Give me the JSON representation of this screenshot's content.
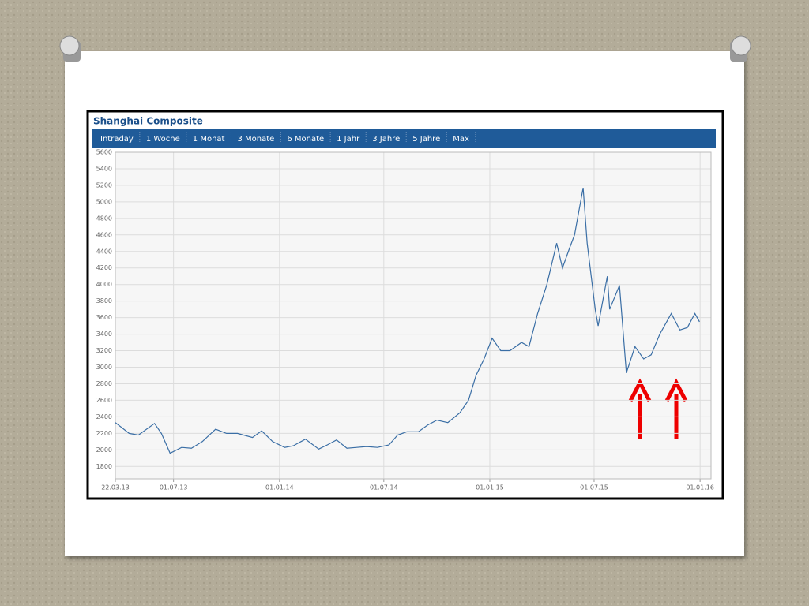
{
  "toolbar": [
    "Intraday",
    "1 Woche",
    "1 Monat",
    "3 Monate",
    "6 Monate",
    "1 Jahr",
    "3 Jahre",
    "5 Jahre",
    "Max"
  ],
  "chart_data": {
    "type": "line",
    "title": "Shanghai Composite",
    "x": [
      "2013-03-22",
      "2013-04-15",
      "2013-05-01",
      "2013-05-29",
      "2013-06-10",
      "2013-06-25",
      "2013-07-15",
      "2013-08-01",
      "2013-08-20",
      "2013-09-12",
      "2013-10-01",
      "2013-10-20",
      "2013-11-15",
      "2013-12-01",
      "2013-12-20",
      "2014-01-10",
      "2014-01-25",
      "2014-02-15",
      "2014-03-10",
      "2014-03-25",
      "2014-04-10",
      "2014-04-28",
      "2014-05-15",
      "2014-06-01",
      "2014-06-20",
      "2014-07-10",
      "2014-07-25",
      "2014-08-10",
      "2014-08-30",
      "2014-09-15",
      "2014-10-01",
      "2014-10-20",
      "2014-11-10",
      "2014-11-25",
      "2014-12-08",
      "2014-12-22",
      "2015-01-05",
      "2015-01-20",
      "2015-02-05",
      "2015-02-25",
      "2015-03-10",
      "2015-03-25",
      "2015-04-10",
      "2015-04-27",
      "2015-05-07",
      "2015-05-20",
      "2015-05-28",
      "2015-06-12",
      "2015-06-19",
      "2015-07-03",
      "2015-07-08",
      "2015-07-24",
      "2015-07-28",
      "2015-08-14",
      "2015-08-26",
      "2015-09-10",
      "2015-09-25",
      "2015-10-08",
      "2015-10-23",
      "2015-11-12",
      "2015-11-27",
      "2015-12-10",
      "2015-12-23",
      "2015-12-31"
    ],
    "series": [
      {
        "name": "Shanghai Composite",
        "color": "#3a6ea5",
        "values": [
          2330,
          2200,
          2180,
          2320,
          2200,
          1960,
          2030,
          2020,
          2100,
          2250,
          2200,
          2200,
          2150,
          2230,
          2100,
          2030,
          2050,
          2130,
          2010,
          2060,
          2120,
          2020,
          2030,
          2040,
          2030,
          2060,
          2180,
          2220,
          2220,
          2300,
          2360,
          2330,
          2450,
          2600,
          2900,
          3100,
          3350,
          3200,
          3200,
          3300,
          3250,
          3650,
          4000,
          4500,
          4200,
          4450,
          4600,
          5170,
          4500,
          3700,
          3500,
          4100,
          3700,
          3990,
          2930,
          3250,
          3100,
          3150,
          3400,
          3650,
          3450,
          3480,
          3650,
          3550
        ]
      }
    ],
    "xlim": [
      "2013-03-22",
      "2016-01-20"
    ],
    "xticks": [
      {
        "value": "2013-03-22",
        "label": "22.03.13"
      },
      {
        "value": "2013-07-01",
        "label": "01.07.13"
      },
      {
        "value": "2014-01-01",
        "label": "01.01.14"
      },
      {
        "value": "2014-07-01",
        "label": "01.07.14"
      },
      {
        "value": "2015-01-01",
        "label": "01.01.15"
      },
      {
        "value": "2015-07-01",
        "label": "01.07.15"
      },
      {
        "value": "2016-01-01",
        "label": "01.01.16"
      }
    ],
    "ylim": [
      1650,
      5600
    ],
    "yticks": [
      1800,
      2000,
      2200,
      2400,
      2600,
      2800,
      3000,
      3200,
      3400,
      3600,
      3800,
      4000,
      4200,
      4400,
      4600,
      4800,
      5000,
      5200,
      5400,
      5600
    ],
    "grid": true
  }
}
